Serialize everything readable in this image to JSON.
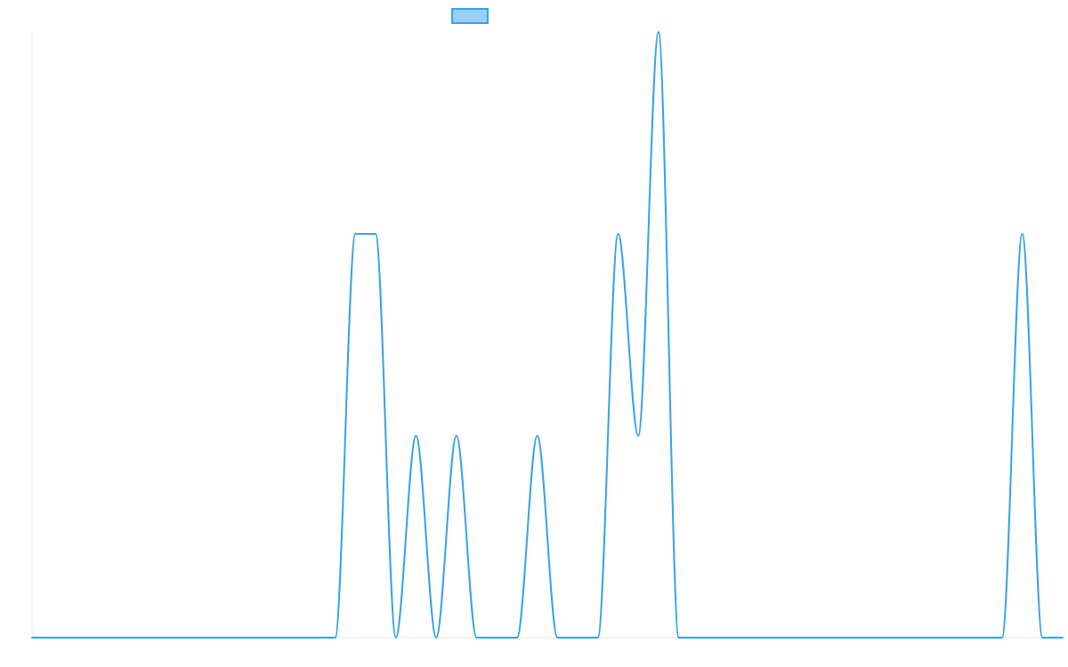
{
  "colors": {
    "series_stroke": "#36a2eb",
    "series_fill": "#9ad0f5",
    "axis": "#e6e6e6",
    "background": "#ffffff"
  },
  "chart_data": {
    "type": "line",
    "title": "",
    "xlabel": "",
    "ylabel": "",
    "grid": false,
    "legend_placement": "top-center",
    "interpolation": "smooth",
    "x": [
      0,
      1,
      2,
      3,
      4,
      5,
      6,
      7,
      8,
      9,
      10,
      11,
      12,
      13,
      14,
      15,
      16,
      17,
      18,
      19,
      20,
      21,
      22,
      23,
      24,
      25,
      26,
      27,
      28,
      29,
      30,
      31,
      32,
      33,
      34,
      35,
      36,
      37,
      38,
      39,
      40,
      41,
      42,
      43,
      44,
      45,
      46,
      47,
      48,
      49,
      50,
      51
    ],
    "xlim": [
      0,
      51
    ],
    "ylim": [
      0,
      3
    ],
    "series": [
      {
        "name": "",
        "values": [
          0,
          0,
          0,
          0,
          0,
          0,
          0,
          0,
          0,
          0,
          0,
          0,
          0,
          0,
          0,
          0,
          2,
          2,
          0,
          1,
          0,
          1,
          0,
          0,
          0,
          1,
          0,
          0,
          0,
          2,
          1,
          3,
          0,
          0,
          0,
          0,
          0,
          0,
          0,
          0,
          0,
          0,
          0,
          0,
          0,
          0,
          0,
          0,
          0,
          2,
          0,
          0
        ]
      }
    ]
  }
}
